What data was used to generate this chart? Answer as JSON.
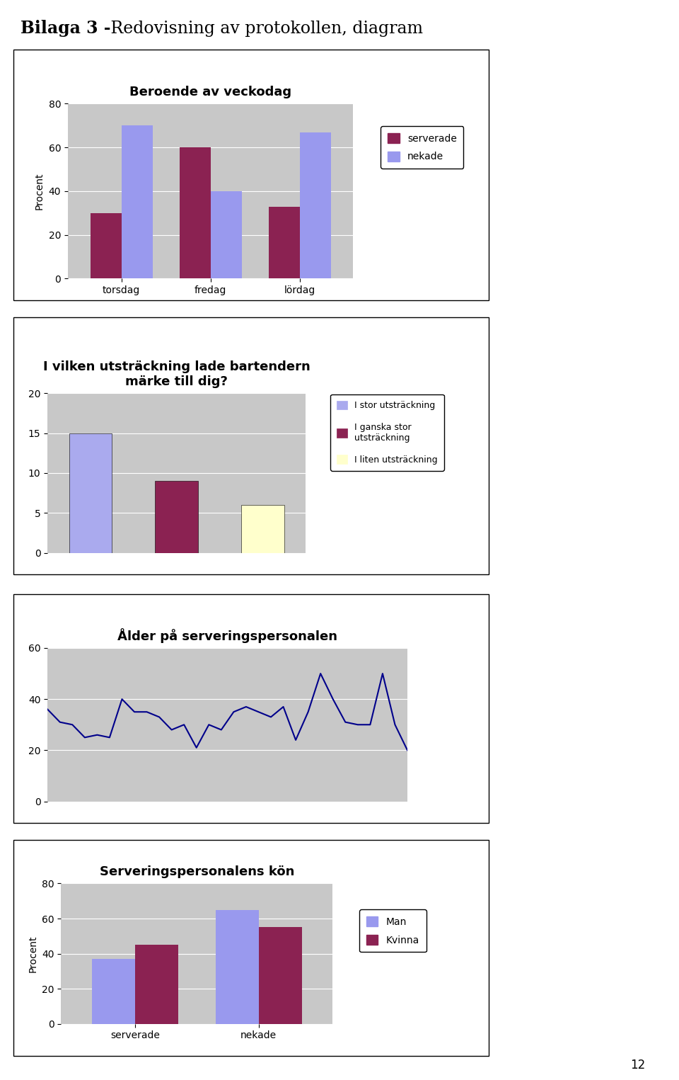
{
  "page_number": "12",
  "chart1": {
    "title": "Beroende av veckodag",
    "categories": [
      "torsdag",
      "fredag",
      "lördag"
    ],
    "serverade": [
      30,
      60,
      33
    ],
    "nekade": [
      70,
      40,
      67
    ],
    "ylabel": "Procent",
    "ylim": [
      0,
      80
    ],
    "yticks": [
      0,
      20,
      40,
      60,
      80
    ],
    "color_serverade": "#8B2252",
    "color_nekade": "#9999EE",
    "legend_serverade": "serverade",
    "legend_nekade": "nekade",
    "bg_color": "#C8C8C8"
  },
  "chart2": {
    "title": "I vilken utsträckning lade bartendern\nmärke till dig?",
    "values": [
      15,
      9,
      6
    ],
    "colors": [
      "#AAAAEE",
      "#8B2252",
      "#FFFFCC"
    ],
    "ylim": [
      0,
      20
    ],
    "yticks": [
      0,
      5,
      10,
      15,
      20
    ],
    "legend_labels": [
      "I stor utsträckning",
      "I ganska stor\nutsträckning",
      "I liten utsträckning"
    ],
    "legend_colors": [
      "#AAAAEE",
      "#8B2252",
      "#FFFFCC"
    ],
    "bg_color": "#C8C8C8"
  },
  "chart3": {
    "title": "Ålder på serveringspersonalen",
    "ylim": [
      0,
      60
    ],
    "yticks": [
      0,
      20,
      40,
      60
    ],
    "line_color": "#00008B",
    "bg_color": "#C8C8C8",
    "y_values": [
      36,
      31,
      30,
      25,
      26,
      25,
      40,
      35,
      35,
      33,
      28,
      30,
      21,
      30,
      28,
      35,
      37,
      35,
      33,
      37,
      24,
      35,
      50,
      40,
      31,
      30,
      30,
      50,
      30,
      20
    ]
  },
  "chart4": {
    "title": "Serveringspersonalens kön",
    "categories": [
      "serverade",
      "nekade"
    ],
    "man": [
      37,
      65
    ],
    "kvinna": [
      45,
      55
    ],
    "ylabel": "Procent",
    "ylim": [
      0,
      80
    ],
    "yticks": [
      0,
      20,
      40,
      60,
      80
    ],
    "color_man": "#9999EE",
    "color_kvinna": "#8B2252",
    "legend_man": "Man",
    "legend_kvinna": "Kvinna",
    "bg_color": "#C8C8C8"
  }
}
